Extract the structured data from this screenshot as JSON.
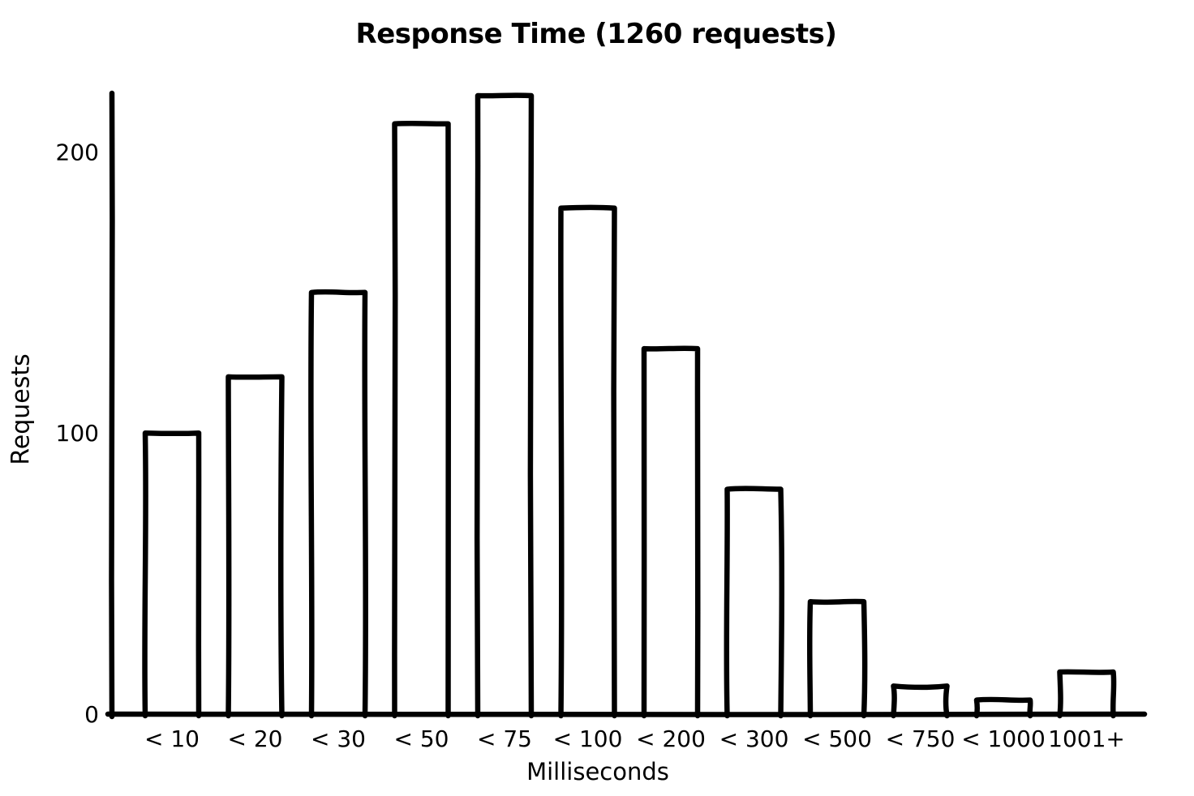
{
  "chart_data": {
    "type": "bar",
    "title": "Response Time (1260 requests)",
    "total_requests": 1260,
    "xlabel": "Milliseconds",
    "ylabel": "Requests",
    "categories": [
      "< 10",
      "< 20",
      "< 30",
      "< 50",
      "< 75",
      "< 100",
      "< 200",
      "< 300",
      "< 500",
      "< 750",
      "< 1000",
      "1001+"
    ],
    "values": [
      100,
      120,
      150,
      210,
      220,
      180,
      130,
      80,
      40,
      10,
      5,
      15
    ],
    "yticks": [
      0,
      100,
      200
    ],
    "ylim": [
      0,
      225
    ],
    "grid": false,
    "legend": "none",
    "style": "hand-drawn",
    "bar_fill": "#ffffff",
    "stroke_color": "#000000",
    "background": "#ffffff"
  }
}
